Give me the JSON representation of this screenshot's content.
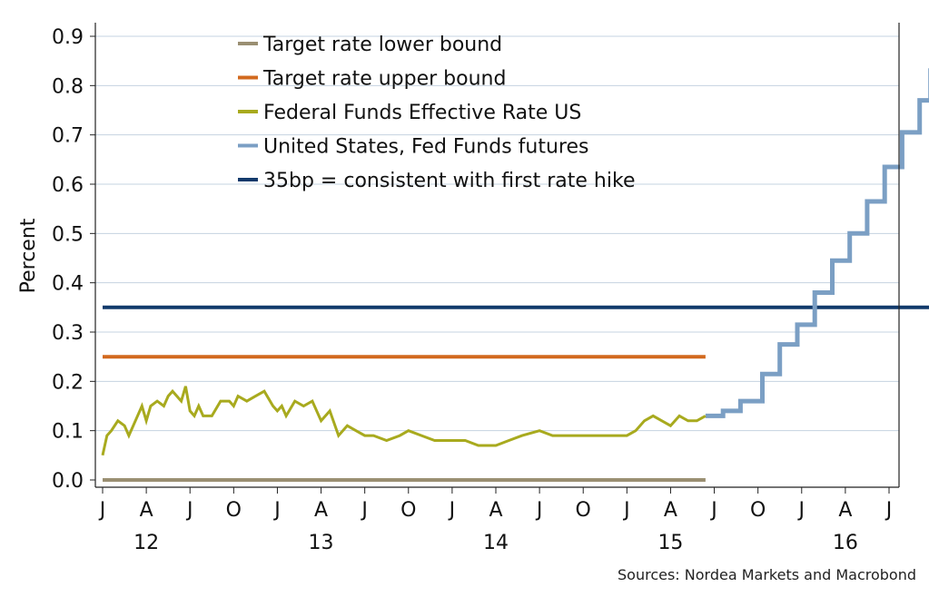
{
  "chart_data": {
    "type": "line",
    "ylabel": "Percent",
    "ylim": [
      0,
      0.9
    ],
    "y_ticks": [
      "0.0",
      "0.1",
      "0.2",
      "0.3",
      "0.4",
      "0.5",
      "0.6",
      "0.7",
      "0.8",
      "0.9"
    ],
    "x_month_ticks": [
      "J",
      "A",
      "J",
      "O",
      "J",
      "A",
      "J",
      "O",
      "J",
      "A",
      "J",
      "O",
      "J",
      "A",
      "J",
      "O",
      "J",
      "A",
      "J"
    ],
    "x_year_labels": [
      {
        "label": "12",
        "index": 1
      },
      {
        "label": "13",
        "index": 5
      },
      {
        "label": "14",
        "index": 9
      },
      {
        "label": "15",
        "index": 13
      },
      {
        "label": "16",
        "index": 17
      }
    ],
    "grid": "horizontal",
    "legend_position": "top-left",
    "series": [
      {
        "name": "Target rate lower bound",
        "color": "#9a8f72",
        "x": [
          0,
          13.8
        ],
        "values": [
          0.0,
          0.0
        ]
      },
      {
        "name": "Target rate upper bound",
        "color": "#d2691e",
        "x": [
          0,
          13.8
        ],
        "values": [
          0.25,
          0.25
        ]
      },
      {
        "name": "Federal Funds Effective Rate US",
        "color": "#a8aa1e",
        "x": [
          0.0,
          0.1,
          0.2,
          0.35,
          0.5,
          0.6,
          0.75,
          0.9,
          1.0,
          1.1,
          1.25,
          1.4,
          1.5,
          1.6,
          1.8,
          1.9,
          2.0,
          2.1,
          2.2,
          2.3,
          2.5,
          2.7,
          2.9,
          3.0,
          3.1,
          3.3,
          3.5,
          3.7,
          3.9,
          4.0,
          4.1,
          4.2,
          4.4,
          4.6,
          4.8,
          5.0,
          5.2,
          5.4,
          5.6,
          5.8,
          6.0,
          6.2,
          6.5,
          6.8,
          7.0,
          7.3,
          7.6,
          8.0,
          8.3,
          8.6,
          9.0,
          9.3,
          9.6,
          10.0,
          10.3,
          10.6,
          11.0,
          11.3,
          11.6,
          12.0,
          12.2,
          12.4,
          12.6,
          12.8,
          13.0,
          13.2,
          13.4,
          13.6,
          13.8
        ],
        "values": [
          0.05,
          0.09,
          0.1,
          0.12,
          0.11,
          0.09,
          0.12,
          0.15,
          0.12,
          0.15,
          0.16,
          0.15,
          0.17,
          0.18,
          0.16,
          0.19,
          0.14,
          0.13,
          0.15,
          0.13,
          0.13,
          0.16,
          0.16,
          0.15,
          0.17,
          0.16,
          0.17,
          0.18,
          0.15,
          0.14,
          0.15,
          0.13,
          0.16,
          0.15,
          0.16,
          0.12,
          0.14,
          0.09,
          0.11,
          0.1,
          0.09,
          0.09,
          0.08,
          0.09,
          0.1,
          0.09,
          0.08,
          0.08,
          0.08,
          0.07,
          0.07,
          0.08,
          0.09,
          0.1,
          0.09,
          0.09,
          0.09,
          0.09,
          0.09,
          0.09,
          0.1,
          0.12,
          0.13,
          0.12,
          0.11,
          0.13,
          0.12,
          0.12,
          0.13
        ]
      },
      {
        "name": "United States, Fed Funds futures",
        "color": "#7b9fc4",
        "step": true,
        "x": [
          13.8,
          14.2,
          14.6,
          15.1,
          15.5,
          15.9,
          16.3,
          16.7,
          17.1,
          17.5,
          17.9,
          18.3,
          18.7,
          18.95
        ],
        "values": [
          0.13,
          0.14,
          0.16,
          0.215,
          0.275,
          0.315,
          0.38,
          0.445,
          0.5,
          0.565,
          0.635,
          0.705,
          0.77,
          0.835
        ]
      },
      {
        "name": "35bp = consistent with first rate hike",
        "color": "#123a6b",
        "x": [
          0,
          18.95
        ],
        "values": [
          0.35,
          0.35
        ]
      }
    ]
  },
  "source_text": "Sources: Nordea Markets and Macrobond"
}
